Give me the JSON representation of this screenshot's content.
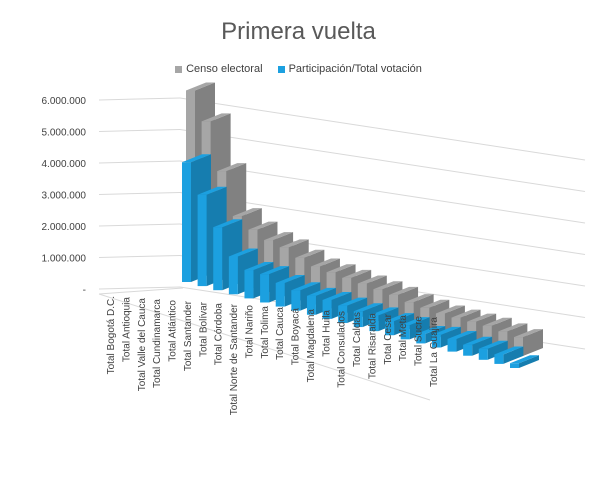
{
  "chart_data": {
    "type": "bar",
    "title": "Primera vuelta",
    "xlabel": "",
    "ylabel": "",
    "ylim": [
      0,
      6000000
    ],
    "yticks": [
      "-",
      "1.000.000",
      "2.000.000",
      "3.000.000",
      "4.000.000",
      "5.000.000",
      "6.000.000"
    ],
    "grid": true,
    "legend_position": "top",
    "categories": [
      "Total Bogotá D.C.",
      "Total Antioquia",
      "Total Valle del Cauca",
      "Total Cundinamarca",
      "Total Atlántico",
      "Total Santander",
      "Total Bolívar",
      "Total Córdoba",
      "Total Norte de Santander",
      "Total Nariño",
      "Total Tolima",
      "Total Cauca",
      "Total Boyacá",
      "Total Magdalena",
      "Total Huila",
      "Total Consulados",
      "Total Caldas",
      "Total Risaralda",
      "Total Cesar",
      "Total Meta",
      "Total Sucre",
      "Total La Guajira"
    ],
    "series": [
      {
        "name": "Censo electoral",
        "color": "#A6A6A6",
        "values": [
          5700000,
          4850000,
          3400000,
          2100000,
          1800000,
          1600000,
          1500000,
          1300000,
          1150000,
          1100000,
          1050000,
          1000000,
          950000,
          900000,
          800000,
          750000,
          700000,
          700000,
          700000,
          700000,
          650000,
          600000
        ]
      },
      {
        "name": "Participación/Total votación",
        "color": "#1CA0E0",
        "values": [
          3800000,
          2900000,
          2000000,
          1200000,
          900000,
          900000,
          750000,
          650000,
          600000,
          600000,
          550000,
          500000,
          500000,
          450000,
          450000,
          300000,
          400000,
          400000,
          350000,
          350000,
          300000,
          150000
        ]
      }
    ]
  }
}
